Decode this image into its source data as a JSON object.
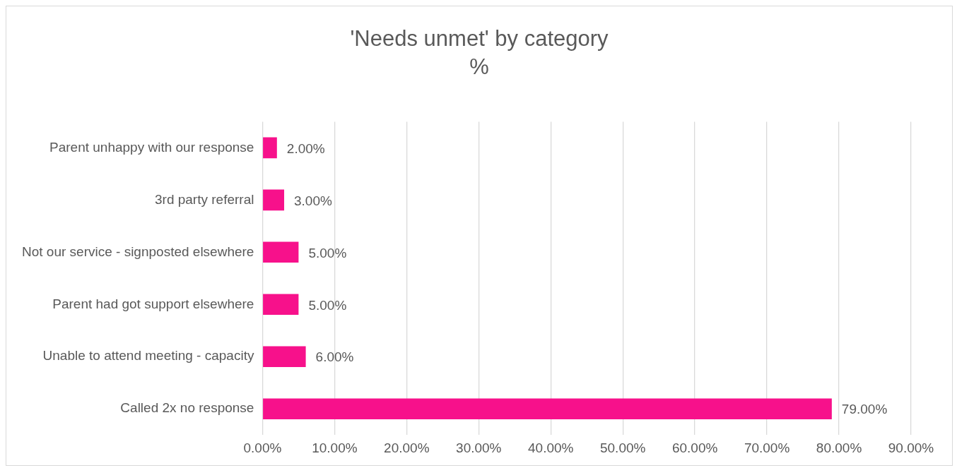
{
  "chart_data": {
    "type": "bar",
    "orientation": "horizontal",
    "title": "'Needs unmet' by category",
    "subtitle": "%",
    "categories": [
      "Parent unhappy with our response",
      "3rd party referral",
      "Not our service - signposted elsewhere",
      "Parent had got support elsewhere",
      "Unable to attend meeting - capacity",
      "Called 2x no response"
    ],
    "values": [
      2,
      3,
      5,
      5,
      6,
      79
    ],
    "color": "#f7118b",
    "value_labels": [
      "2.00%",
      "3.00%",
      "5.00%",
      "5.00%",
      "6.00%",
      "79.00%"
    ],
    "xlim": [
      0,
      90
    ],
    "xticks": [
      {
        "value": 0,
        "label": "0.00%"
      },
      {
        "value": 10,
        "label": "10.00%"
      },
      {
        "value": 20,
        "label": "20.00%"
      },
      {
        "value": 30,
        "label": "30.00%"
      },
      {
        "value": 40,
        "label": "40.00%"
      },
      {
        "value": 50,
        "label": "50.00%"
      },
      {
        "value": 60,
        "label": "60.00%"
      },
      {
        "value": 70,
        "label": "70.00%"
      },
      {
        "value": 80,
        "label": "80.00%"
      },
      {
        "value": 90,
        "label": "90.00%"
      }
    ],
    "grid": "x",
    "legend": false
  }
}
